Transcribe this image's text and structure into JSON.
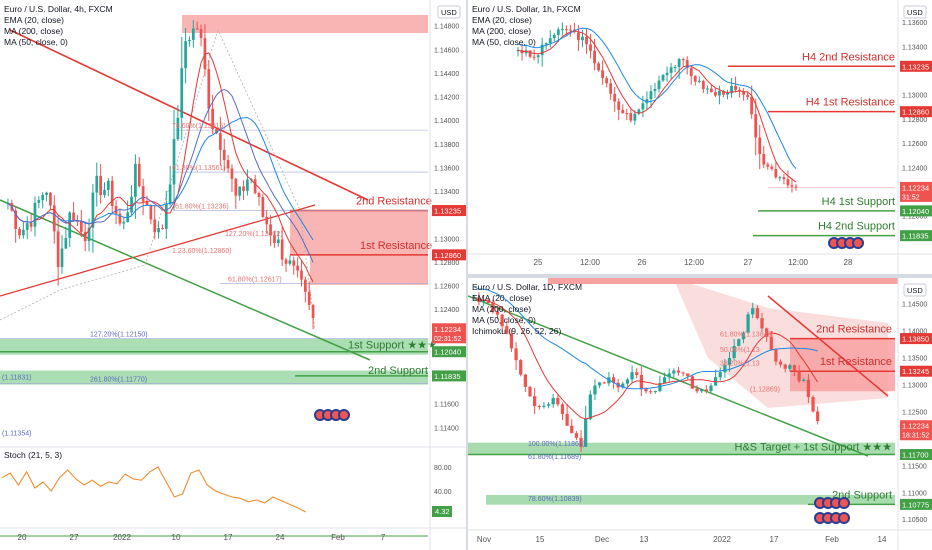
{
  "colors": {
    "up": "#26a69a",
    "down": "#ef5350",
    "ema": "#e53935",
    "ma200": "#1e88e5",
    "ma50": "#5c6bc0",
    "res": "#e53935",
    "sup": "#43a047",
    "resZone": "#f8a1a1",
    "supZone": "#9ed8a6",
    "text_red": "#d32f2f",
    "text_green": "#2e7d32",
    "stoch": "#ef8d2c"
  },
  "left": {
    "title": "Euro / U.S. Dollar, 4h, FXCM",
    "indicators": [
      "EMA (20, close)",
      "MA (200, close)",
      "MA (50, close, 0)"
    ],
    "currency": "USD",
    "price_ticks": [
      "1.14800",
      "1.14600",
      "1.14400",
      "1.14200",
      "1.14000",
      "1.13800",
      "1.13600",
      "1.13400",
      "1.13000",
      "1.12800",
      "1.12600",
      "1.12400",
      "1.11600",
      "1.11400"
    ],
    "price_tags": [
      {
        "value": "1.13235",
        "kind": "res"
      },
      {
        "value": "1.12860",
        "kind": "res"
      },
      {
        "value": "1.12234",
        "kind": "last",
        "sub": "02:31:52"
      },
      {
        "value": "1.12040",
        "kind": "sup"
      },
      {
        "value": "1.11835",
        "kind": "sup"
      }
    ],
    "labels": {
      "res2": "2nd Resistance",
      "res1": "1st Resistance",
      "sup1": "1st Support ★★★",
      "sup2": "2nd Support"
    },
    "fib": [
      {
        "text": "78.60%(1.13916)"
      },
      {
        "text": "61.80%(1.13561)"
      },
      {
        "text": "61.80%(1.13236)"
      },
      {
        "text": "127.20%(1.13002)"
      },
      {
        "text": "1.23.60%(1.12860)"
      },
      {
        "text": "61.80%(1.12617)"
      },
      {
        "text": "127.20%(1.12150)"
      },
      {
        "text": "261.80%(1.11770)"
      },
      {
        "text": "(1.11831)"
      },
      {
        "text": "(1.11354)"
      }
    ],
    "stoch": {
      "title": "Stoch (21, 5, 3)",
      "ticks": [
        "80.00",
        "40.00"
      ],
      "value": "4.32"
    },
    "xaxis": [
      "20",
      "27",
      "2022",
      "10",
      "17",
      "24",
      "Feb",
      "7"
    ]
  },
  "topright": {
    "title": "Euro / U.S. Dollar, 1h, FXCM",
    "indicators": [
      "EMA (20, close)",
      "MA (200, close)",
      "MA (50, close, 0)"
    ],
    "currency": "USD",
    "price_ticks": [
      "1.13600",
      "1.13400",
      "1.13000",
      "1.12800",
      "1.12600",
      "1.12400",
      "1.12000"
    ],
    "price_tags": [
      {
        "value": "1.13235",
        "kind": "res"
      },
      {
        "value": "1.12860",
        "kind": "res"
      },
      {
        "value": "1.12234",
        "kind": "last",
        "sub": "31:52"
      },
      {
        "value": "1.12040",
        "kind": "sup"
      },
      {
        "value": "1.11835",
        "kind": "sup"
      }
    ],
    "labels": {
      "res2": "H4 2nd Resistance",
      "res1": "H4 1st Resistance",
      "sup1": "H4 1st Support",
      "sup2": "H4 2nd Support"
    },
    "xaxis": [
      "25",
      "12:00",
      "26",
      "12:00",
      "27",
      "12:00",
      "28"
    ]
  },
  "bottomright": {
    "title": "Euro / U.S. Dollar, 1D, FXCM",
    "indicators": [
      "EMA (20, close)",
      "MA (200, close)",
      "MA (50, close, 0)",
      "Ichimoku (9, 26, 52, 26)"
    ],
    "currency": "USD",
    "price_ticks": [
      "1.14500",
      "1.14000",
      "1.13500",
      "1.13000",
      "1.12500",
      "1.11500",
      "1.11000",
      "1.10500"
    ],
    "price_tags": [
      {
        "value": "1.13850",
        "kind": "res"
      },
      {
        "value": "1.13245",
        "kind": "res"
      },
      {
        "value": "1.12234",
        "kind": "last",
        "sub": "18:31:52"
      },
      {
        "value": "1.11700",
        "kind": "sup"
      },
      {
        "value": "1.10775",
        "kind": "sup"
      }
    ],
    "labels": {
      "res2": "2nd Resistance",
      "res1": "1st Resistance",
      "sup1": "H&S Target + 1st Support ★★★",
      "sup2": "2nd Support"
    },
    "fib": [
      {
        "text": "61.80%(1.13849)"
      },
      {
        "text": "50.00%(1.13"
      },
      {
        "text": "38.20%(1.13"
      },
      {
        "text": "(1.12869)"
      },
      {
        "text": "100.00%(1.11861)"
      },
      {
        "text": "61.80%(1.11689)"
      },
      {
        "text": "78.60%(1.10839)"
      }
    ],
    "xaxis": [
      "Nov",
      "15",
      "Dec",
      "13",
      "2022",
      "17",
      "Feb",
      "14"
    ]
  }
}
